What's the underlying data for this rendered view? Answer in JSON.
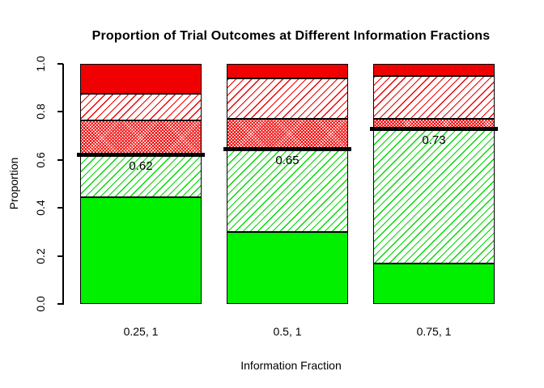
{
  "chart_data": {
    "type": "bar",
    "subtype": "stacked-proportion",
    "title": "Proportion of Trial Outcomes at Different Information Fractions",
    "xlabel": "Information Fraction",
    "ylabel": "Proportion",
    "ylim": [
      0,
      1
    ],
    "grid": false,
    "legend": null,
    "ytick_labels": [
      "0.0",
      "0.2",
      "0.4",
      "0.6",
      "0.8",
      "1.0"
    ],
    "categories": [
      "0.25, 1",
      "0.5, 1",
      "0.75, 1"
    ],
    "stack_order_bottom_to_top": [
      "green-solid",
      "green-hatch",
      "red-dense-hatch",
      "red-light-hatch",
      "red-solid"
    ],
    "bars": [
      {
        "category": "0.25, 1",
        "threshold_value": 0.62,
        "threshold_label": "0.62",
        "segments": [
          {
            "name": "green-solid",
            "from": 0.0,
            "to": 0.445
          },
          {
            "name": "green-hatch",
            "from": 0.445,
            "to": 0.62
          },
          {
            "name": "red-dense-hatch",
            "from": 0.62,
            "to": 0.765
          },
          {
            "name": "red-light-hatch",
            "from": 0.765,
            "to": 0.875
          },
          {
            "name": "red-solid",
            "from": 0.875,
            "to": 1.0
          }
        ]
      },
      {
        "category": "0.5, 1",
        "threshold_value": 0.645,
        "threshold_label": "0.65",
        "segments": [
          {
            "name": "green-solid",
            "from": 0.0,
            "to": 0.3
          },
          {
            "name": "green-hatch",
            "from": 0.3,
            "to": 0.645
          },
          {
            "name": "red-dense-hatch",
            "from": 0.645,
            "to": 0.77
          },
          {
            "name": "red-light-hatch",
            "from": 0.77,
            "to": 0.94
          },
          {
            "name": "red-solid",
            "from": 0.94,
            "to": 1.0
          }
        ]
      },
      {
        "category": "0.75, 1",
        "threshold_value": 0.73,
        "threshold_label": "0.73",
        "segments": [
          {
            "name": "green-solid",
            "from": 0.0,
            "to": 0.17
          },
          {
            "name": "green-hatch",
            "from": 0.17,
            "to": 0.73
          },
          {
            "name": "red-dense-hatch",
            "from": 0.73,
            "to": 0.77
          },
          {
            "name": "red-light-hatch",
            "from": 0.77,
            "to": 0.95
          },
          {
            "name": "red-solid",
            "from": 0.95,
            "to": 1.0
          }
        ]
      }
    ],
    "colors": {
      "green": "#00f000",
      "red": "#f00000",
      "threshold_line": "#000000",
      "background": "#ffffff"
    }
  }
}
